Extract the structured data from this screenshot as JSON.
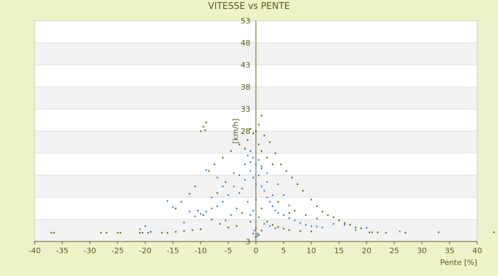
{
  "chart_data": {
    "type": "scatter",
    "title": "VITESSE vs PENTE",
    "xlabel": "Pente [%]",
    "ylabel": "[km/h]",
    "xlim": [
      -40,
      40
    ],
    "ylim": [
      3,
      53
    ],
    "x_ticks": [
      -40,
      -35,
      -30,
      -25,
      -20,
      -15,
      -10,
      -5,
      0,
      5,
      10,
      15,
      20,
      25,
      30,
      35,
      40
    ],
    "y_ticks": [
      3,
      8,
      13,
      18,
      23,
      28,
      33,
      38,
      43,
      48,
      53
    ],
    "y_tick_labels_shown": [
      3,
      28,
      33,
      38,
      43,
      48,
      53
    ],
    "grid": "alternating horizontal bands",
    "legend": "none",
    "series": [
      {
        "color": "#3a86d0",
        "marker": "dot",
        "points": [
          [
            -1.5,
            22.5
          ],
          [
            -1.0,
            19.0
          ],
          [
            -0.5,
            17.5
          ],
          [
            0.0,
            16.0
          ],
          [
            0.5,
            18.0
          ],
          [
            1.0,
            15.5
          ],
          [
            1.5,
            14.5
          ],
          [
            2.0,
            13.0
          ],
          [
            2.5,
            12.0
          ],
          [
            3.0,
            11.0
          ],
          [
            3.5,
            10.0
          ],
          [
            4.0,
            9.5
          ],
          [
            5.0,
            9.0
          ],
          [
            6.0,
            8.3
          ],
          [
            7.0,
            7.8
          ],
          [
            8.0,
            7.2
          ],
          [
            9.0,
            6.8
          ],
          [
            10.0,
            6.5
          ],
          [
            11.0,
            6.4
          ],
          [
            12.0,
            6.2
          ],
          [
            -2.0,
            20.5
          ],
          [
            -3.0,
            18.0
          ],
          [
            -4.0,
            15.5
          ],
          [
            -5.0,
            13.5
          ],
          [
            -6.0,
            12.0
          ],
          [
            -7.0,
            11.0
          ],
          [
            -8.0,
            10.5
          ],
          [
            -9.0,
            9.8
          ],
          [
            -10.0,
            9.3
          ],
          [
            -11.0,
            8.7
          ],
          [
            -1.0,
            23.5
          ],
          [
            -0.5,
            22.0
          ],
          [
            0.5,
            21.5
          ],
          [
            1.0,
            20.0
          ],
          [
            2.0,
            18.5
          ],
          [
            -2.5,
            15.0
          ],
          [
            -1.5,
            12.0
          ],
          [
            -0.5,
            10.0
          ],
          [
            0.5,
            8.5
          ],
          [
            1.5,
            7.0
          ],
          [
            -3.5,
            10.5
          ],
          [
            -4.5,
            9.0
          ],
          [
            -5.5,
            7.8
          ],
          [
            -6.5,
            7.0
          ],
          [
            2.5,
            6.5
          ],
          [
            3.5,
            6.0
          ],
          [
            -0.3,
            5.5
          ],
          [
            0.3,
            4.8
          ],
          [
            -0.1,
            4.0
          ],
          [
            0.2,
            4.2
          ],
          [
            -16.0,
            12.2
          ],
          [
            -15.0,
            10.8
          ],
          [
            -12.0,
            9.8
          ],
          [
            -13.0,
            7.3
          ],
          [
            -21.0,
            5.8
          ],
          [
            -20.0,
            6.5
          ],
          [
            -19.0,
            5.2
          ],
          [
            14.0,
            7.0
          ],
          [
            16.0,
            6.8
          ],
          [
            18.0,
            5.6
          ],
          [
            26.0,
            5.3
          ],
          [
            20.0,
            6.1
          ],
          [
            -9.0,
            19.2
          ],
          [
            -7.0,
            17.5
          ],
          [
            -6.0,
            15.5
          ],
          [
            -8.0,
            13.0
          ],
          [
            -4.0,
            18.5
          ],
          [
            4.0,
            16.0
          ],
          [
            5.0,
            13.5
          ],
          [
            6.0,
            11.2
          ],
          [
            -1.0,
            21.0
          ],
          [
            0.0,
            20.5
          ],
          [
            1.0,
            19.5
          ],
          [
            -2.0,
            17.0
          ],
          [
            2.0,
            16.5
          ],
          [
            -3.0,
            14.0
          ],
          [
            3.0,
            13.5
          ],
          [
            -1.0,
            9.0
          ],
          [
            1.0,
            10.5
          ],
          [
            0.0,
            12.5
          ]
        ]
      },
      {
        "color": "#6b6b14",
        "marker": "dot",
        "points": [
          [
            -37.0,
            5.0
          ],
          [
            -36.5,
            5.0
          ],
          [
            -28.0,
            5.0
          ],
          [
            -27.0,
            5.0
          ],
          [
            -25.0,
            5.0
          ],
          [
            -24.5,
            5.0
          ],
          [
            -21.0,
            5.0
          ],
          [
            -20.5,
            5.0
          ],
          [
            -19.5,
            5.0
          ],
          [
            -17.0,
            5.0
          ],
          [
            -16.0,
            5.0
          ],
          [
            -14.5,
            5.2
          ],
          [
            -13.0,
            5.4
          ],
          [
            -11.5,
            5.6
          ],
          [
            -10.0,
            5.8
          ],
          [
            20.5,
            5.1
          ],
          [
            21.0,
            5.1
          ],
          [
            22.0,
            5.1
          ],
          [
            23.5,
            5.0
          ],
          [
            27.0,
            5.0
          ],
          [
            33.0,
            5.1
          ],
          [
            43.0,
            5.1
          ],
          [
            -9.5,
            29.0
          ],
          [
            -9.0,
            30.0
          ],
          [
            -9.2,
            28.2
          ],
          [
            -10.0,
            28.0
          ],
          [
            1.0,
            31.5
          ],
          [
            0.5,
            29.5
          ],
          [
            -1.0,
            28.5
          ],
          [
            -0.5,
            27.5
          ],
          [
            0.0,
            28.0
          ],
          [
            1.5,
            27.0
          ],
          [
            2.5,
            25.5
          ],
          [
            3.5,
            23.0
          ],
          [
            4.5,
            20.5
          ],
          [
            5.5,
            19.0
          ],
          [
            6.5,
            17.5
          ],
          [
            7.5,
            16.0
          ],
          [
            8.5,
            14.5
          ],
          [
            10.0,
            12.5
          ],
          [
            11.0,
            11.0
          ],
          [
            12.0,
            9.8
          ],
          [
            13.0,
            9.0
          ],
          [
            14.0,
            8.5
          ],
          [
            15.0,
            7.8
          ],
          [
            16.0,
            7.2
          ],
          [
            17.0,
            6.8
          ],
          [
            18.0,
            6.2
          ],
          [
            19.0,
            6.0
          ],
          [
            -3.0,
            25.0
          ],
          [
            -4.5,
            23.5
          ],
          [
            -6.0,
            22.0
          ],
          [
            -7.5,
            20.5
          ],
          [
            -8.5,
            19.0
          ],
          [
            -11.0,
            15.5
          ],
          [
            -12.0,
            13.8
          ],
          [
            -13.5,
            12.0
          ],
          [
            -14.5,
            10.5
          ],
          [
            -10.5,
            10.0
          ],
          [
            -9.5,
            9.0
          ],
          [
            -8.0,
            8.0
          ],
          [
            -6.5,
            7.0
          ],
          [
            -5.0,
            6.2
          ],
          [
            -3.5,
            6.5
          ],
          [
            2.0,
            7.5
          ],
          [
            3.0,
            6.8
          ],
          [
            4.0,
            6.3
          ],
          [
            5.0,
            5.9
          ],
          [
            6.0,
            5.6
          ],
          [
            8.0,
            5.4
          ],
          [
            10.0,
            5.3
          ],
          [
            7.0,
            10.0
          ],
          [
            9.0,
            9.0
          ],
          [
            11.0,
            8.2
          ],
          [
            -2.0,
            24.0
          ],
          [
            -1.5,
            26.0
          ],
          [
            0.5,
            25.0
          ],
          [
            1.0,
            23.5
          ],
          [
            2.0,
            22.0
          ],
          [
            3.0,
            20.5
          ],
          [
            -5.5,
            16.5
          ],
          [
            -7.0,
            14.0
          ],
          [
            4.0,
            12.0
          ],
          [
            6.0,
            9.5
          ],
          [
            -2.5,
            9.5
          ],
          [
            -1.0,
            7.5
          ],
          [
            0.0,
            6.0
          ],
          [
            1.0,
            5.5
          ],
          [
            0.5,
            4.5
          ],
          [
            -0.5,
            4.8
          ]
        ]
      }
    ]
  }
}
